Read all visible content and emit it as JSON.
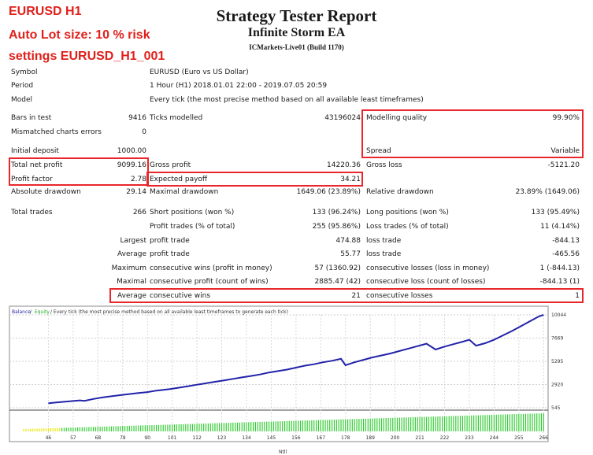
{
  "overlay": {
    "line1": "EURUSD H1",
    "line2": "Auto Lot size: 10 % risk",
    "line3": "settings EURUSD_H1_001"
  },
  "header": {
    "title": "Strategy Tester Report",
    "ea_name": "Infinite Storm EA",
    "server": "ICMarkets-Live01 (Build 1170)"
  },
  "info": {
    "symbol_label": "Symbol",
    "symbol_value": "EURUSD (Euro vs US Dollar)",
    "period_label": "Period",
    "period_value": "1 Hour (H1) 2018.01.01 22:00 - 2019.07.05 20:59",
    "model_label": "Model",
    "model_value": "Every tick (the most precise method based on all available least timeframes)"
  },
  "stats": {
    "bars_label": "Bars in test",
    "bars_value": "9416",
    "ticks_label": "Ticks modelled",
    "ticks_value": "43196024",
    "quality_label": "Modelling quality",
    "quality_value": "99.90%",
    "mismatch_label": "Mismatched charts errors",
    "mismatch_value": "0",
    "deposit_label": "Initial deposit",
    "deposit_value": "1000.00",
    "spread_label": "Spread",
    "spread_value": "Variable",
    "net_profit_label": "Total net profit",
    "net_profit_value": "9099.16",
    "gross_profit_label": "Gross profit",
    "gross_profit_value": "14220.36",
    "gross_loss_label": "Gross loss",
    "gross_loss_value": "-5121.20",
    "pf_label": "Profit factor",
    "pf_value": "2.78",
    "payoff_label": "Expected payoff",
    "payoff_value": "34.21",
    "abs_dd_label": "Absolute drawdown",
    "abs_dd_value": "29.14",
    "max_dd_label": "Maximal drawdown",
    "max_dd_value": "1649.06 (23.89%)",
    "rel_dd_label": "Relative drawdown",
    "rel_dd_value": "23.89% (1649.06)",
    "trades_label": "Total trades",
    "trades_value": "266",
    "short_label": "Short positions (won %)",
    "short_value": "133 (96.24%)",
    "long_label": "Long positions (won %)",
    "long_value": "133 (95.49%)",
    "profit_trades_label": "Profit trades (% of total)",
    "profit_trades_value": "255 (95.86%)",
    "loss_trades_label": "Loss trades (% of total)",
    "loss_trades_value": "11 (4.14%)",
    "largest_label": "Largest",
    "largest_profit_label": "profit trade",
    "largest_profit_value": "474.88",
    "largest_loss_label": "loss trade",
    "largest_loss_value": "-844.13",
    "average_label": "Average",
    "average_profit_label": "profit trade",
    "average_profit_value": "55.77",
    "average_loss_label": "loss trade",
    "average_loss_value": "-465.56",
    "maximum_label": "Maximum",
    "max_cons_wins_label": "consecutive wins (profit in money)",
    "max_cons_wins_value": "57 (1360.92)",
    "max_cons_losses_label": "consecutive losses (loss in money)",
    "max_cons_losses_value": "1 (-844.13)",
    "maximal_label": "Maximal",
    "maximal_profit_label": "consecutive profit (count of wins)",
    "maximal_profit_value": "2885.47 (42)",
    "maximal_loss_label": "consecutive loss (count of losses)",
    "maximal_loss_value": "-844.13 (1)",
    "avg_label": "Average",
    "avg_wins_label": "consecutive wins",
    "avg_wins_value": "21",
    "avg_losses_label": "consecutive losses",
    "avg_losses_value": "1"
  },
  "chart_data": {
    "type": "line",
    "legend_balance": "Balance",
    "legend_sep1": " / ",
    "legend_equity": "Equity",
    "legend_rest": " / Every tick (the most precise method based on all available least timeframes to generate each tick)",
    "xlabel": "Ntll",
    "x_ticks": [
      "46",
      "57",
      "68",
      "79",
      "90",
      "101",
      "112",
      "123",
      "134",
      "145",
      "156",
      "167",
      "178",
      "189",
      "200",
      "211",
      "222",
      "233",
      "244",
      "255",
      "266"
    ],
    "y_ticks": [
      "10044",
      "7669",
      "5295",
      "2920",
      "545"
    ],
    "ylim": [
      545,
      10044
    ],
    "series": [
      {
        "name": "Balance",
        "x": [
          46,
          50,
          55,
          60,
          62,
          66,
          70,
          75,
          80,
          86,
          90,
          94,
          100,
          104,
          108,
          112,
          116,
          120,
          124,
          128,
          132,
          136,
          140,
          144,
          148,
          152,
          156,
          160,
          164,
          168,
          172,
          176,
          178,
          182,
          186,
          190,
          194,
          198,
          202,
          206,
          210,
          214,
          218,
          222,
          226,
          230,
          233,
          236,
          240,
          244,
          248,
          252,
          256,
          260,
          264,
          266
        ],
        "y": [
          1000,
          1100,
          1200,
          1300,
          1250,
          1450,
          1600,
          1750,
          1900,
          2050,
          2150,
          2300,
          2450,
          2600,
          2750,
          2900,
          3050,
          3200,
          3350,
          3500,
          3650,
          3800,
          3950,
          4150,
          4300,
          4450,
          4650,
          4850,
          5000,
          5200,
          5350,
          5550,
          4900,
          5200,
          5450,
          5700,
          5900,
          6100,
          6350,
          6600,
          6850,
          7100,
          6500,
          6800,
          7050,
          7300,
          7500,
          6900,
          7150,
          7500,
          7950,
          8400,
          8900,
          9400,
          9900,
          10044
        ]
      }
    ],
    "colors": {
      "balance": "#2222aa",
      "equity": "#22aa22",
      "volume": "#33cc33",
      "yellow": "#e8e800"
    }
  }
}
